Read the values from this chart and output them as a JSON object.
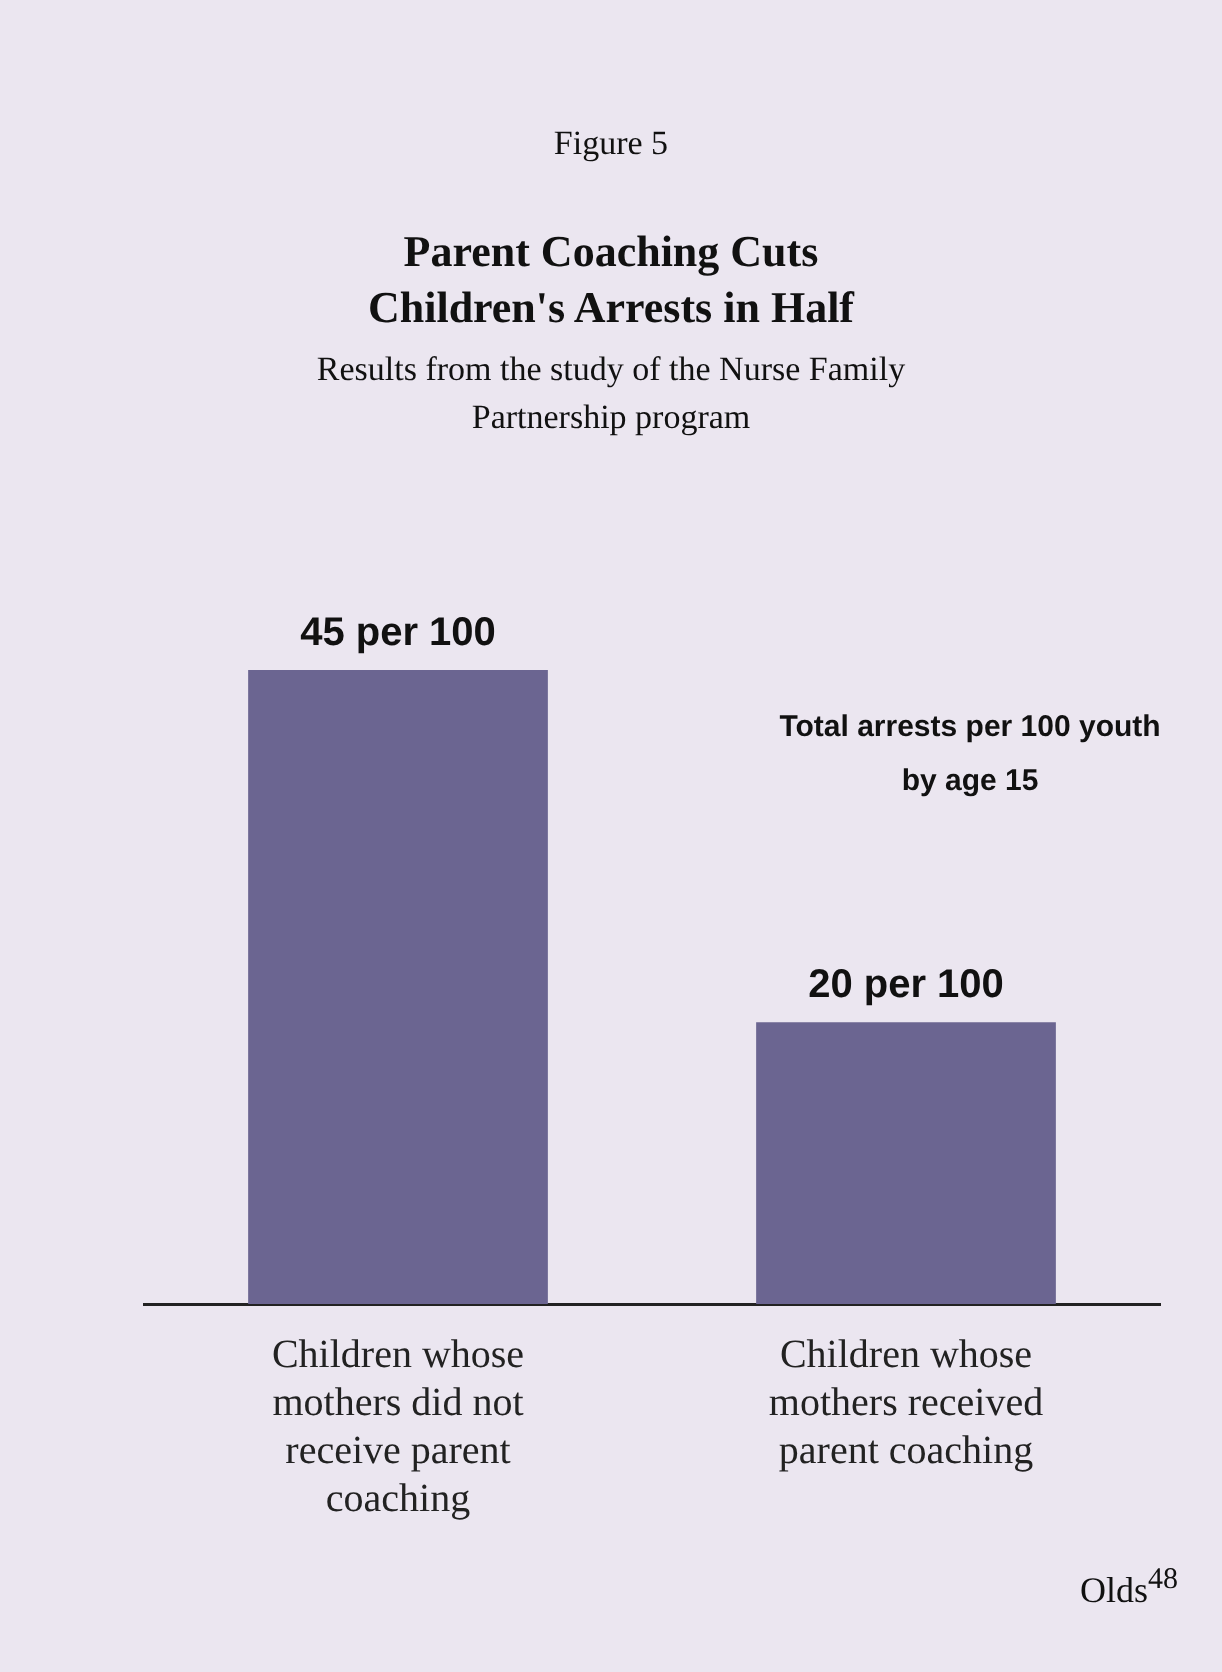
{
  "chart_data": {
    "type": "bar",
    "title": "Parent Coaching Cuts Children's Arrests in Half",
    "subtitle": "Results from the study of the Nurse Family Partnership program",
    "categories": [
      "Children whose mothers did not receive parent coaching",
      "Children whose mothers received parent coaching"
    ],
    "values": [
      45,
      20
    ],
    "value_labels": [
      "45 per 100",
      "20 per 100"
    ],
    "color": "#6b6591",
    "annotations": [
      "Figure 5",
      "Total arrests per 100 youth by age 15",
      "Olds$^{48}$"
    ],
    "grid": false,
    "legend": false
  }
}
